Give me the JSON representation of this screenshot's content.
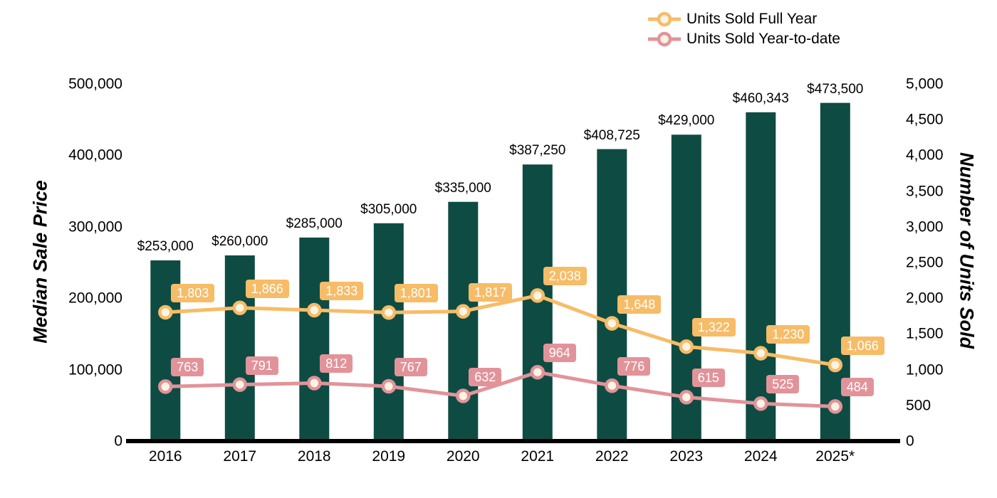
{
  "chart_data": {
    "type": "combo-bar-line",
    "title": "",
    "categories": [
      "2016",
      "2017",
      "2018",
      "2019",
      "2020",
      "2021",
      "2022",
      "2023",
      "2024",
      "2025*"
    ],
    "bar_series": {
      "name": "Median Sale Price",
      "axis": "left",
      "color": "#0e4c43",
      "values": [
        253000,
        260000,
        285000,
        305000,
        335000,
        387250,
        408725,
        429000,
        460343,
        473500
      ],
      "labels": [
        "$253,000",
        "$260,000",
        "$285,000",
        "$305,000",
        "$335,000",
        "$387,250",
        "$408,725",
        "$429,000",
        "$460,343",
        "$473,500"
      ]
    },
    "line_series": [
      {
        "name": "Units Sold Full Year",
        "axis": "right",
        "color": "#f7bc67",
        "values": [
          1803,
          1866,
          1833,
          1801,
          1817,
          2038,
          1648,
          1322,
          1230,
          1066
        ],
        "labels": [
          "1,803",
          "1,866",
          "1,833",
          "1,801",
          "1,817",
          "2,038",
          "1,648",
          "1,322",
          "1,230",
          "1,066"
        ]
      },
      {
        "name": "Units Sold Year-to-date",
        "axis": "right",
        "color": "#e2939a",
        "values": [
          763,
          791,
          812,
          767,
          632,
          964,
          776,
          615,
          525,
          484
        ],
        "labels": [
          "763",
          "791",
          "812",
          "767",
          "632",
          "964",
          "776",
          "615",
          "525",
          "484"
        ]
      }
    ],
    "left_axis": {
      "title": "Median Sale Price",
      "min": 0,
      "max": 500000,
      "step": 100000,
      "tick_labels": [
        "0",
        "100,000",
        "200,000",
        "300,000",
        "400,000",
        "500,000"
      ]
    },
    "right_axis": {
      "title": "Number of Units Sold",
      "min": 0,
      "max": 5000,
      "step": 500,
      "tick_labels": [
        "0",
        "500",
        "1,000",
        "1,500",
        "2,000",
        "2,500",
        "3,000",
        "3,500",
        "4,000",
        "4,500",
        "5,000"
      ]
    },
    "legend": {
      "position": "top-right",
      "items": [
        "Units Sold Full Year",
        "Units Sold Year-to-date"
      ]
    },
    "grid": false,
    "marker_fill": "#fcf3e3",
    "value_label_text_color": "#ffffff",
    "bar_label_text_color": "#000000",
    "axis_line_color": "#000000"
  }
}
